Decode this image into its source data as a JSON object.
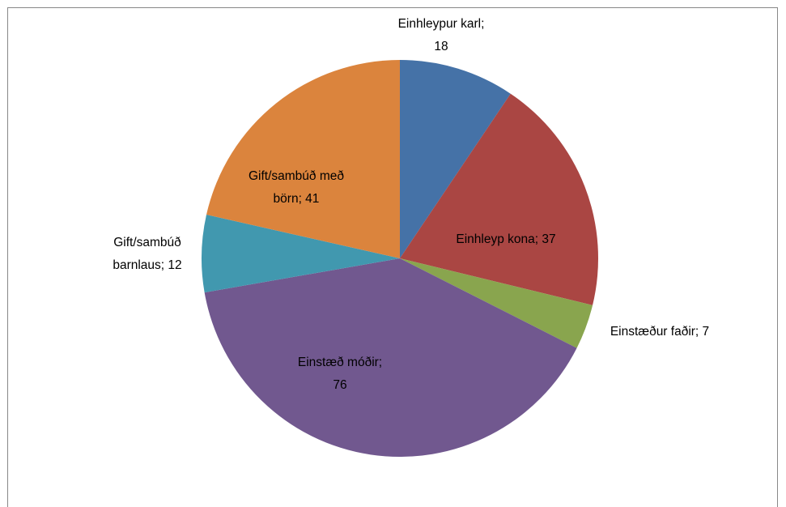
{
  "chart_data": {
    "type": "pie",
    "values": [
      18,
      37,
      7,
      76,
      12,
      41
    ],
    "value_labels": [
      [
        "Einhleypur karl;",
        "18"
      ],
      [
        "Einhleyp kona; 37"
      ],
      [
        "Einstæður faðir; 7"
      ],
      [
        "Einstæð móðir;",
        "76"
      ],
      [
        "Gift/sambúð",
        "barnlaus; 12"
      ],
      [
        "Gift/sambúð með",
        "börn; 41"
      ]
    ],
    "colors": [
      "#4572a7",
      "#aa4643",
      "#89a54e",
      "#71588f",
      "#4198af",
      "#db843d"
    ]
  }
}
